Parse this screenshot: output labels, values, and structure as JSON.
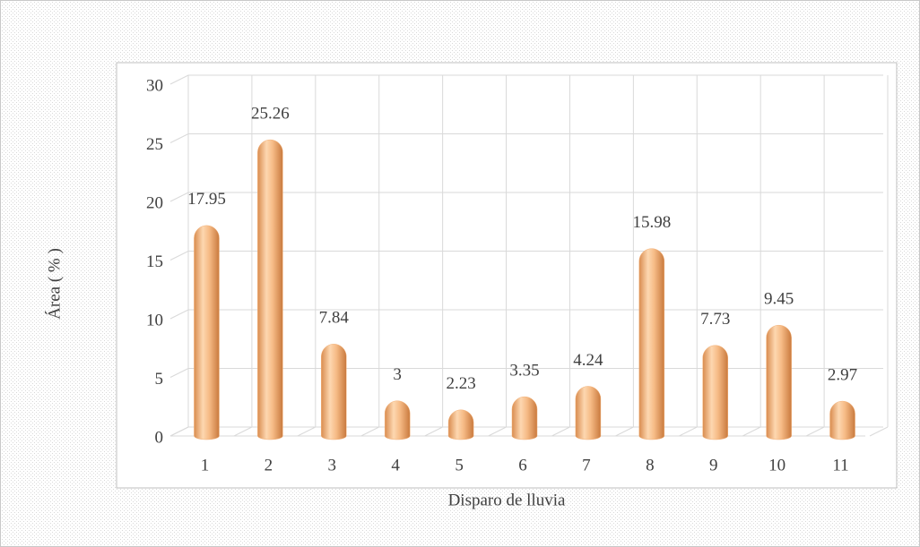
{
  "chart_data": {
    "type": "bar",
    "x_label": "Disparo de lluvia",
    "y_label": "Área ( % )",
    "categories": [
      "1",
      "2",
      "3",
      "4",
      "5",
      "6",
      "7",
      "8",
      "9",
      "10",
      "11"
    ],
    "values": [
      17.95,
      25.26,
      7.84,
      3,
      2.23,
      3.35,
      4.24,
      15.98,
      7.73,
      9.45,
      2.97
    ],
    "color": "#f3b27a",
    "ylim": [
      0,
      30
    ],
    "yticks": [
      0,
      5,
      10,
      15,
      20,
      25,
      30
    ],
    "grid": true
  }
}
